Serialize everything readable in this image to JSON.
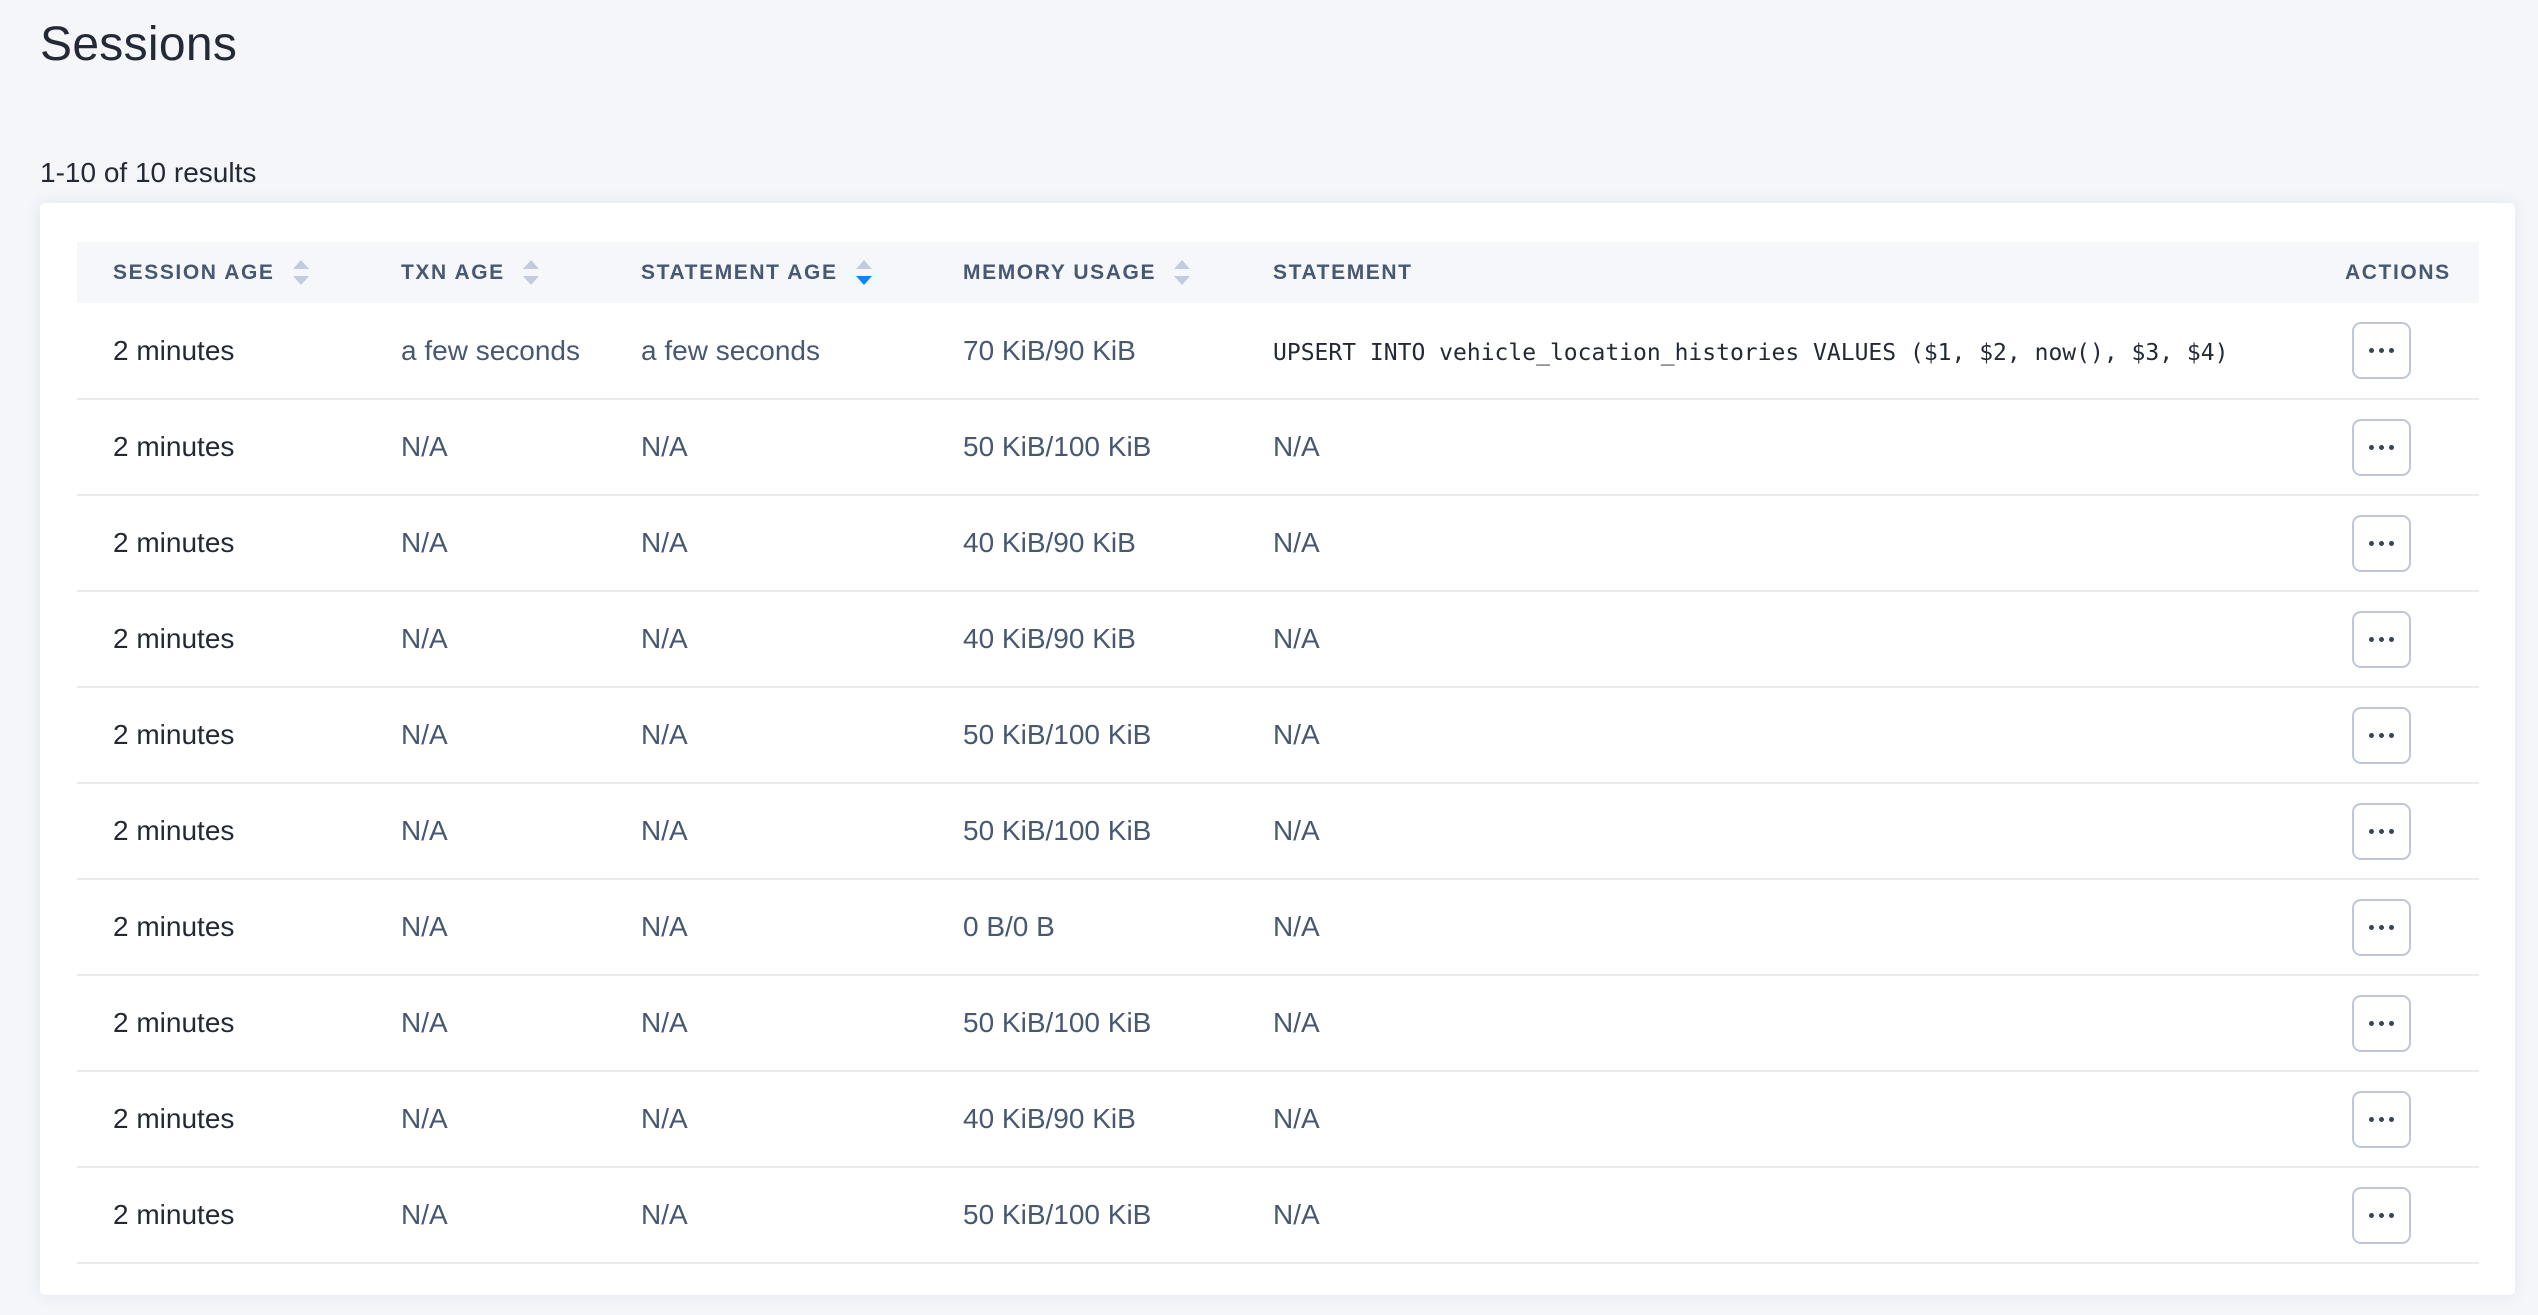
{
  "page": {
    "title": "Sessions",
    "results_summary": "1-10 of 10 results"
  },
  "table": {
    "columns": [
      {
        "label": "SESSION AGE",
        "sortable": true,
        "sort": null
      },
      {
        "label": "TXN AGE",
        "sortable": true,
        "sort": null
      },
      {
        "label": "STATEMENT AGE",
        "sortable": true,
        "sort": "desc"
      },
      {
        "label": "MEMORY USAGE",
        "sortable": true,
        "sort": null
      },
      {
        "label": "STATEMENT",
        "sortable": false,
        "sort": null
      },
      {
        "label": "ACTIONS",
        "sortable": false,
        "sort": null
      }
    ],
    "rows": [
      {
        "session_age": "2 minutes",
        "txn_age": "a few seconds",
        "statement_age": "a few seconds",
        "memory_usage": "70 KiB/90 KiB",
        "statement": "UPSERT INTO vehicle_location_histories VALUES ($1, $2, now(), $3, $4)",
        "statement_is_sql": true
      },
      {
        "session_age": "2 minutes",
        "txn_age": "N/A",
        "statement_age": "N/A",
        "memory_usage": "50 KiB/100 KiB",
        "statement": "N/A",
        "statement_is_sql": false
      },
      {
        "session_age": "2 minutes",
        "txn_age": "N/A",
        "statement_age": "N/A",
        "memory_usage": "40 KiB/90 KiB",
        "statement": "N/A",
        "statement_is_sql": false
      },
      {
        "session_age": "2 minutes",
        "txn_age": "N/A",
        "statement_age": "N/A",
        "memory_usage": "40 KiB/90 KiB",
        "statement": "N/A",
        "statement_is_sql": false
      },
      {
        "session_age": "2 minutes",
        "txn_age": "N/A",
        "statement_age": "N/A",
        "memory_usage": "50 KiB/100 KiB",
        "statement": "N/A",
        "statement_is_sql": false
      },
      {
        "session_age": "2 minutes",
        "txn_age": "N/A",
        "statement_age": "N/A",
        "memory_usage": "50 KiB/100 KiB",
        "statement": "N/A",
        "statement_is_sql": false
      },
      {
        "session_age": "2 minutes",
        "txn_age": "N/A",
        "statement_age": "N/A",
        "memory_usage": "0 B/0 B",
        "statement": "N/A",
        "statement_is_sql": false
      },
      {
        "session_age": "2 minutes",
        "txn_age": "N/A",
        "statement_age": "N/A",
        "memory_usage": "50 KiB/100 KiB",
        "statement": "N/A",
        "statement_is_sql": false
      },
      {
        "session_age": "2 minutes",
        "txn_age": "N/A",
        "statement_age": "N/A",
        "memory_usage": "40 KiB/90 KiB",
        "statement": "N/A",
        "statement_is_sql": false
      },
      {
        "session_age": "2 minutes",
        "txn_age": "N/A",
        "statement_age": "N/A",
        "memory_usage": "50 KiB/100 KiB",
        "statement": "N/A",
        "statement_is_sql": false
      }
    ],
    "icons": {
      "row_actions": "ellipsis",
      "sort": "caret-up-down"
    }
  },
  "colors": {
    "page_background": "#f4f6fa",
    "card_background": "#ffffff",
    "table_header_background": "#f5f7fa",
    "header_text": "#475872",
    "body_text_dark": "#242a35",
    "body_text_slate": "#475872",
    "divider": "#e7ecf3",
    "sort_arrow_inactive": "#c3cbdf",
    "sort_arrow_active": "#0788ff",
    "action_button_border": "#c0c6d9"
  }
}
